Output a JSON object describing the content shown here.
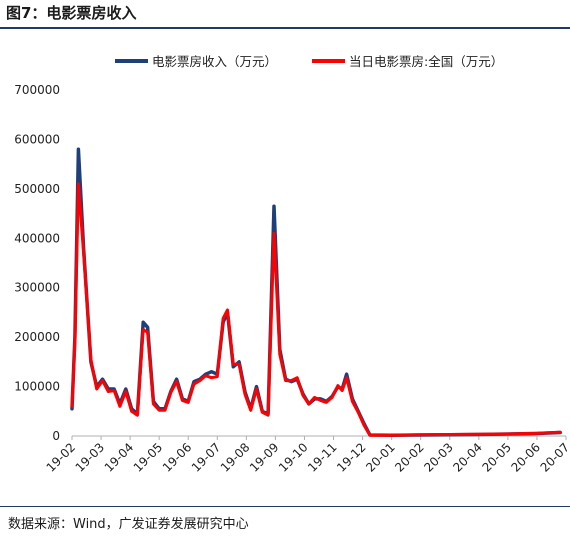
{
  "header": {
    "title": "图7：电影票房收入"
  },
  "footer": {
    "source": "数据来源：Wind，广发证券发展研究中心"
  },
  "colors": {
    "series1": "#1f3f7a",
    "series2": "#ff0000",
    "rule": "#1f3a68"
  },
  "chart_data": {
    "type": "line",
    "title": "",
    "xlabel": "",
    "ylabel": "",
    "ylim": [
      0,
      700000
    ],
    "yticks": [
      "0",
      "100000",
      "200000",
      "300000",
      "400000",
      "500000",
      "600000",
      "700000"
    ],
    "xticks": [
      "19-02",
      "19-03",
      "19-04",
      "19-05",
      "19-06",
      "19-07",
      "19-08",
      "19-09",
      "19-10",
      "19-11",
      "19-12",
      "20-01",
      "20-02",
      "20-03",
      "20-04",
      "20-05",
      "20-06",
      "20-07"
    ],
    "grid": false,
    "legend": "top-center",
    "series": [
      {
        "name": "电影票房收入（万元）",
        "points": [
          [
            0.0,
            55000
          ],
          [
            0.1,
            200000
          ],
          [
            0.22,
            580000
          ],
          [
            0.4,
            380000
          ],
          [
            0.65,
            150000
          ],
          [
            0.85,
            100000
          ],
          [
            1.05,
            115000
          ],
          [
            1.25,
            95000
          ],
          [
            1.45,
            95000
          ],
          [
            1.65,
            65000
          ],
          [
            1.85,
            95000
          ],
          [
            2.05,
            55000
          ],
          [
            2.25,
            45000
          ],
          [
            2.45,
            230000
          ],
          [
            2.6,
            220000
          ],
          [
            2.8,
            70000
          ],
          [
            3.0,
            55000
          ],
          [
            3.2,
            55000
          ],
          [
            3.4,
            90000
          ],
          [
            3.6,
            115000
          ],
          [
            3.8,
            75000
          ],
          [
            4.0,
            70000
          ],
          [
            4.2,
            110000
          ],
          [
            4.4,
            115000
          ],
          [
            4.6,
            125000
          ],
          [
            4.8,
            130000
          ],
          [
            5.0,
            125000
          ],
          [
            5.2,
            230000
          ],
          [
            5.35,
            250000
          ],
          [
            5.55,
            140000
          ],
          [
            5.75,
            150000
          ],
          [
            5.95,
            90000
          ],
          [
            6.15,
            55000
          ],
          [
            6.35,
            100000
          ],
          [
            6.55,
            50000
          ],
          [
            6.75,
            45000
          ],
          [
            6.95,
            465000
          ],
          [
            7.15,
            175000
          ],
          [
            7.35,
            115000
          ],
          [
            7.55,
            110000
          ],
          [
            7.75,
            115000
          ],
          [
            7.95,
            85000
          ],
          [
            8.15,
            65000
          ],
          [
            8.35,
            75000
          ],
          [
            8.55,
            75000
          ],
          [
            8.75,
            70000
          ],
          [
            8.95,
            80000
          ],
          [
            9.15,
            100000
          ],
          [
            9.3,
            95000
          ],
          [
            9.45,
            125000
          ],
          [
            9.65,
            75000
          ],
          [
            9.85,
            50000
          ],
          [
            10.05,
            25000
          ],
          [
            10.25,
            2000
          ],
          [
            11.0,
            1500
          ],
          [
            12.0,
            2000
          ],
          [
            13.0,
            2500
          ],
          [
            14.0,
            3000
          ],
          [
            15.0,
            4000
          ],
          [
            16.0,
            5000
          ],
          [
            16.8,
            7000
          ]
        ]
      },
      {
        "name": "当日电影票房:全国（万元）",
        "points": [
          [
            0.0,
            60000
          ],
          [
            0.1,
            190000
          ],
          [
            0.22,
            510000
          ],
          [
            0.4,
            370000
          ],
          [
            0.65,
            155000
          ],
          [
            0.85,
            95000
          ],
          [
            1.05,
            112000
          ],
          [
            1.25,
            90000
          ],
          [
            1.45,
            92000
          ],
          [
            1.65,
            60000
          ],
          [
            1.85,
            90000
          ],
          [
            2.05,
            50000
          ],
          [
            2.25,
            42000
          ],
          [
            2.45,
            215000
          ],
          [
            2.6,
            210000
          ],
          [
            2.8,
            65000
          ],
          [
            3.0,
            52000
          ],
          [
            3.2,
            52000
          ],
          [
            3.4,
            88000
          ],
          [
            3.6,
            110000
          ],
          [
            3.8,
            72000
          ],
          [
            4.0,
            68000
          ],
          [
            4.2,
            105000
          ],
          [
            4.4,
            112000
          ],
          [
            4.6,
            122000
          ],
          [
            4.8,
            118000
          ],
          [
            5.0,
            120000
          ],
          [
            5.2,
            238000
          ],
          [
            5.35,
            255000
          ],
          [
            5.55,
            145000
          ],
          [
            5.75,
            145000
          ],
          [
            5.95,
            85000
          ],
          [
            6.15,
            52000
          ],
          [
            6.35,
            95000
          ],
          [
            6.55,
            48000
          ],
          [
            6.75,
            42000
          ],
          [
            6.95,
            410000
          ],
          [
            7.15,
            165000
          ],
          [
            7.35,
            112000
          ],
          [
            7.55,
            112000
          ],
          [
            7.75,
            118000
          ],
          [
            7.95,
            82000
          ],
          [
            8.15,
            65000
          ],
          [
            8.35,
            78000
          ],
          [
            8.55,
            72000
          ],
          [
            8.75,
            68000
          ],
          [
            8.95,
            78000
          ],
          [
            9.15,
            102000
          ],
          [
            9.3,
            92000
          ],
          [
            9.45,
            118000
          ],
          [
            9.65,
            70000
          ],
          [
            9.85,
            48000
          ],
          [
            10.05,
            22000
          ],
          [
            10.25,
            1500
          ],
          [
            11.0,
            1500
          ],
          [
            12.0,
            2500
          ],
          [
            13.0,
            3000
          ],
          [
            14.0,
            3500
          ],
          [
            15.0,
            4000
          ],
          [
            16.0,
            5500
          ],
          [
            16.8,
            7500
          ]
        ]
      }
    ]
  }
}
